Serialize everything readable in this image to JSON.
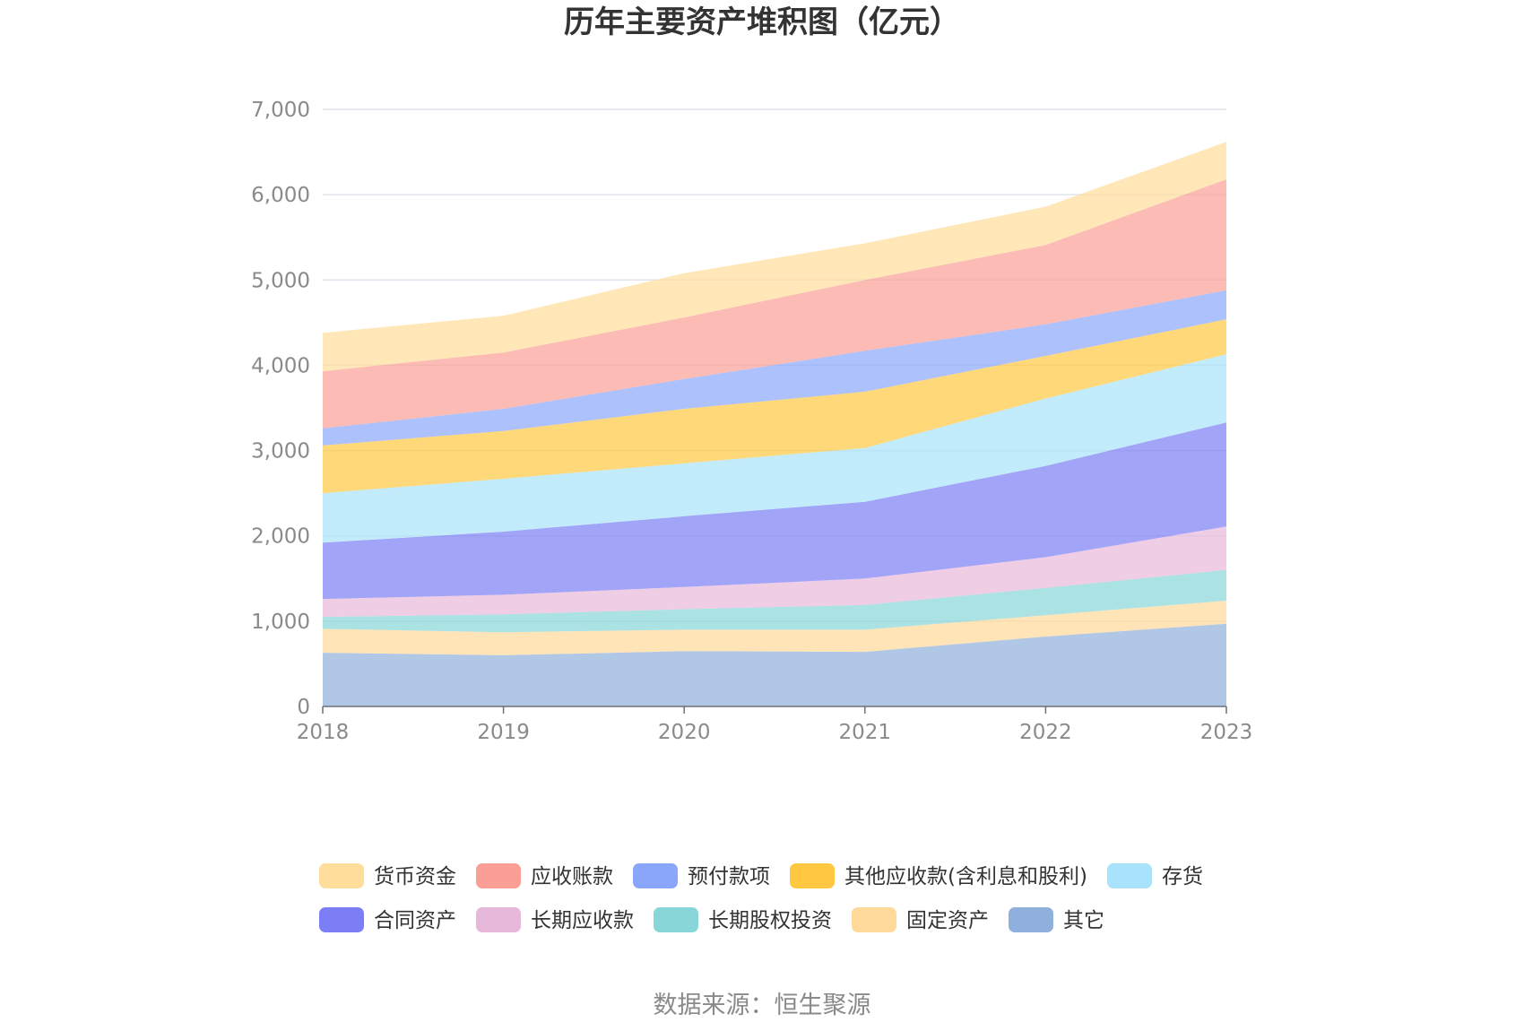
{
  "chart_data": {
    "type": "area",
    "stacked": true,
    "title": "历年主要资产堆积图（亿元）",
    "source": "数据来源：恒生聚源",
    "categories": [
      "2018",
      "2019",
      "2020",
      "2021",
      "2022",
      "2023"
    ],
    "ylim": [
      0,
      7000
    ],
    "yticks": [
      0,
      1000,
      2000,
      3000,
      4000,
      5000,
      6000,
      7000
    ],
    "ytick_labels": [
      "0",
      "1,000",
      "2,000",
      "3,000",
      "4,000",
      "5,000",
      "6,000",
      "7,000"
    ],
    "grid": true,
    "legend_position": "bottom",
    "series": [
      {
        "name": "其它",
        "color": "#8fafdc",
        "values": [
          630,
          600,
          650,
          640,
          820,
          970
        ]
      },
      {
        "name": "固定资产",
        "color": "#ffd99a",
        "values": [
          280,
          270,
          250,
          260,
          250,
          270
        ]
      },
      {
        "name": "长期股权投资",
        "color": "#88d6d8",
        "values": [
          140,
          210,
          240,
          290,
          320,
          360
        ]
      },
      {
        "name": "长期应收款",
        "color": "#e8b8da",
        "values": [
          210,
          230,
          260,
          310,
          360,
          510
        ]
      },
      {
        "name": "合同资产",
        "color": "#7b7ef4",
        "values": [
          660,
          740,
          830,
          900,
          1070,
          1220
        ]
      },
      {
        "name": "存货",
        "color": "#a8e2fb",
        "values": [
          580,
          620,
          620,
          630,
          790,
          800
        ]
      },
      {
        "name": "其他应收款(含利息和股利)",
        "color": "#ffc840",
        "values": [
          560,
          560,
          640,
          660,
          500,
          410
        ]
      },
      {
        "name": "预付款项",
        "color": "#8aa6fb",
        "values": [
          200,
          260,
          350,
          480,
          370,
          340
        ]
      },
      {
        "name": "应收账款",
        "color": "#fb9f96",
        "values": [
          670,
          660,
          720,
          830,
          930,
          1300
        ]
      },
      {
        "name": "货币资金",
        "color": "#ffdd9a",
        "values": [
          450,
          430,
          520,
          430,
          450,
          440
        ]
      }
    ],
    "legend_order": [
      "货币资金",
      "应收账款",
      "预付款项",
      "其他应收款(含利息和股利)",
      "存货",
      "合同资产",
      "长期应收款",
      "长期股权投资",
      "固定资产",
      "其它"
    ]
  }
}
